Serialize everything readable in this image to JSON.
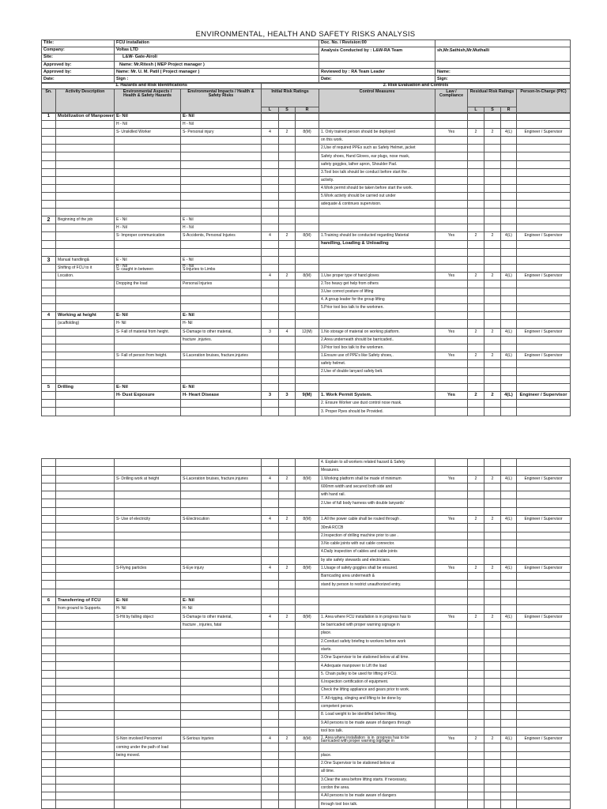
{
  "document": {
    "title": "ENVIRONMENTAL, HEALTH AND SAFETY RISKS ANALYSIS"
  },
  "info": {
    "title_label": "Title:",
    "title_value": "FCU installation",
    "company_label": "Company:",
    "company_value": "Voltas LTD",
    "site_label": "Site:",
    "site_value": "L&W- Gate-Airoli",
    "approved1_label": "Approved by:",
    "approved1_value": "Name: Mr.Ritesh ( MEP Project manager )",
    "approved2_label": "Approved by:",
    "approved2_value": "Name: Mr. U. M. Patil ( Project manager )",
    "date_label": "Date:",
    "date_value": "Sign :",
    "doc_no": "Doc. No. / Revision:00",
    "conducted_by": "Analysis Conducted by :  L&W-RA Team",
    "conducted_names": "sh,Mr.Sathish,Mr.Muthalli",
    "reviewed_by": "Reviewed by :  RA Team Leader",
    "reviewer_name": "Name:",
    "right_date": "Date:",
    "right_sign": "Sign:"
  },
  "sections": {
    "left": "1. Hazards and Risk Identifications",
    "right": "2. Risk Evaluation and Controls"
  },
  "columns": {
    "sn": "Sn.",
    "activity": "Activity Description",
    "aspects": "Environmental Aspects / Health & Safety Hazards",
    "impacts": "Environmental Impacts / Health & Safety Risks",
    "initial": "Initial Risk Ratings",
    "control": "Control Measures",
    "law": "Law / Compliance",
    "residual": "Residual Risk Ratings",
    "pic": "Person-In-Charge (PIC)",
    "l": "L",
    "s": "S",
    "r": "R"
  },
  "page1": {
    "rows": [
      {
        "cells": [
          "1",
          "Mobilization of Manpower",
          "E- Nil",
          "E- Nil"
        ],
        "bold": true
      },
      {
        "cells": [
          "",
          "",
          "H - Nil",
          "H - Nil"
        ]
      },
      {
        "cells": [
          "",
          "",
          "S- Unskilled Worker",
          "S- Personal injury",
          "4",
          "2",
          "8(M)",
          "1. Only trained person should be deployed",
          "Yes",
          "2",
          "2",
          "4(L)",
          "Engineer / Supervisor"
        ]
      },
      {
        "cells": [
          "",
          "",
          "",
          "",
          "",
          "",
          "",
          "on this work."
        ]
      },
      {
        "cells": [
          "",
          "",
          "",
          "",
          "",
          "",
          "",
          "2.Use of required PPEs such as Safety Helmet, jacket"
        ]
      },
      {
        "cells": [
          "",
          "",
          "",
          "",
          "",
          "",
          "",
          "Safety shoes, Hand Gloves, ear plugs, nose mask,"
        ]
      },
      {
        "cells": [
          "",
          "",
          "",
          "",
          "",
          "",
          "",
          " safety goggles, lather apron, Shoulder Pad."
        ]
      },
      {
        "cells": [
          "",
          "",
          "",
          "",
          "",
          "",
          "",
          "3.Tool box talk should be conduct before start the ."
        ]
      },
      {
        "cells": [
          "",
          "",
          "",
          "",
          "",
          "",
          "",
          "activity."
        ]
      },
      {
        "cells": [
          "",
          "",
          "",
          "",
          "",
          "",
          "",
          "4.Work permit should be taken before start the work."
        ]
      },
      {
        "cells": [
          "",
          "",
          "",
          "",
          "",
          "",
          "",
          "5.Work activity should be carried out under"
        ]
      },
      {
        "cells": [
          "",
          "",
          "",
          "",
          "",
          "",
          "",
          "adequate & continues supervision."
        ]
      },
      {
        "cells": []
      },
      {
        "cells": [
          "2",
          "Beginning of the job",
          "E - Nil",
          "E - Nil"
        ]
      },
      {
        "cells": [
          "",
          "",
          "H - Nil",
          "H - Nil"
        ]
      },
      {
        "cells": [
          "",
          "",
          "S- Improper communication",
          "S-Accidents, Personal Injuries",
          "4",
          "2",
          "8(M)",
          "    1.Training should be conducted regarding Material",
          "Yes",
          "2",
          "2",
          "4(L)",
          "Engineer / Supervisor"
        ]
      },
      {
        "cells": [
          "",
          "",
          "",
          "",
          "",
          "",
          "",
          "handling, Loading & Unloading"
        ],
        "bold": true
      },
      {
        "cells": []
      },
      {
        "cells": [
          "3",
          "Manual handling&",
          "E - Nil",
          "E - Nil"
        ]
      },
      {
        "cells": [
          "",
          "Shifting of FCU to it",
          "H - Nil\nS- caught in between",
          "H - Nil\nS-Injuries to Limbs"
        ]
      },
      {
        "cells": [
          "",
          "Location.",
          "",
          "",
          "4",
          "2",
          "8(M)",
          "1.Use proper type of hand gloves",
          "Yes",
          "2",
          "2",
          "4(L)",
          "Engineer / Supervisor"
        ]
      },
      {
        "cells": [
          "",
          "",
          "Dropping the load",
          "Personal Injuries",
          "",
          "",
          "",
          "2.Too heavy get help from others"
        ]
      },
      {
        "cells": [
          "",
          "",
          "",
          "",
          "",
          "",
          "",
          "3.Use correct posture of lifting"
        ]
      },
      {
        "cells": [
          "",
          "",
          "",
          "",
          "",
          "",
          "",
          "4. A group leader for the group lifting"
        ]
      },
      {
        "cells": [
          "",
          "",
          "",
          "",
          "",
          "",
          "",
          "5.Prior tool box talk to the workmen."
        ]
      },
      {
        "cells": [
          "4",
          "Working at height",
          "E- Nil",
          "E- Nil"
        ],
        "bold": true
      },
      {
        "cells": [
          "",
          "(scaffolding)",
          "H- Nil",
          "H- Nil"
        ]
      },
      {
        "cells": [
          "",
          "",
          "S- Fall of material from height.",
          "S-Damage  to other material,",
          "3",
          "4",
          "12(M)",
          "1.No storage of material on working platform.",
          "Yes",
          "2",
          "2",
          "4(L)",
          "Engineer / Supervisor"
        ]
      },
      {
        "cells": [
          "",
          "",
          "",
          "fracture ,injuries.",
          "",
          "",
          "",
          "2.Area underneath should be barricaded.."
        ]
      },
      {
        "cells": [
          "",
          "",
          "",
          "",
          "",
          "",
          "",
          "3.Prior tool box talk to the workmen."
        ]
      },
      {
        "cells": [
          "",
          "",
          "S- Fall of person from height.",
          "S-Laceration  bruises, fracture,injuries",
          "",
          "",
          "",
          "1.Ensure use of PPE's like Safety shoes,.",
          "Yes",
          "2",
          "2",
          "4(L)",
          "Engineer / Supervisor"
        ]
      },
      {
        "cells": [
          "",
          "",
          "",
          "",
          "",
          "",
          "",
          " safety helmet."
        ]
      },
      {
        "cells": [
          "",
          "",
          "",
          "",
          "",
          "",
          "",
          "2.Use of double lanyard safety belt."
        ]
      },
      {
        "cells": []
      },
      {
        "cells": [
          "5",
          "Drilling",
          "E- Nil",
          "E- Nil"
        ],
        "bold": true
      },
      {
        "cells": [
          "",
          "",
          "H- Dust Exposure",
          "H- Heart Disease",
          "3",
          "3",
          "9(M)",
          "1. Work Permit System.",
          "Yes",
          "2",
          "2",
          "4(L)",
          "Engineer / Supervisor"
        ],
        "bold": true
      },
      {
        "cells": [
          "",
          "",
          "",
          "",
          "",
          "",
          "",
          "2. Ensure Worker use dust control nose mask."
        ]
      },
      {
        "cells": [
          "",
          "",
          "",
          "",
          "",
          "",
          "",
          "3. Proper Ppes should be Provided."
        ]
      }
    ]
  },
  "page2": {
    "rows": [
      {
        "cells": [
          "",
          "",
          "",
          "",
          "",
          "",
          "",
          "4. Explain to all workers related hazard & Safety"
        ]
      },
      {
        "cells": [
          "",
          "",
          "",
          "",
          "",
          "",
          "",
          "Measures."
        ]
      },
      {
        "cells": [
          "",
          "",
          "S- Drilling work at height",
          "S-Laceration  bruises, fracture,injuries",
          "4",
          "2",
          "8(M)",
          "1.Working platform shall be made of minimum",
          "Yes",
          "2",
          "2",
          "4(L)",
          "Engineer / Supervisor"
        ]
      },
      {
        "cells": [
          "",
          "",
          "",
          "",
          "",
          "",
          "",
          " 600mm width and secured both side and"
        ]
      },
      {
        "cells": [
          "",
          "",
          "",
          "",
          "",
          "",
          "",
          "with hand rail."
        ]
      },
      {
        "cells": [
          "",
          "",
          "",
          "",
          "",
          "",
          "",
          "2.Use of full body harness with double lanyards'"
        ]
      },
      {
        "cells": []
      },
      {
        "cells": [
          "",
          "",
          "S- Use of electricity",
          "S-Electrocution",
          "4",
          "2",
          "8(M)",
          "1.All the power cable shall be routed through .",
          "Yes",
          "2",
          "2",
          "4(L)",
          "Engineer / Supervisor"
        ]
      },
      {
        "cells": [
          "",
          "",
          "",
          "",
          "",
          "",
          "",
          "30mA RCCB"
        ]
      },
      {
        "cells": [
          "",
          "",
          "",
          "",
          "",
          "",
          "",
          "2.Inspection of drilling machine prior to use ."
        ]
      },
      {
        "cells": [
          "",
          "",
          "",
          "",
          "",
          "",
          "",
          "3.No cable joints with out cable connector."
        ]
      },
      {
        "cells": [
          "",
          "",
          "",
          "",
          "",
          "",
          "",
          "4.Daily inspection of cables and cable joints"
        ]
      },
      {
        "cells": [
          "",
          "",
          "",
          "",
          "",
          "",
          "",
          "by site safety stewards and electricians."
        ]
      },
      {
        "cells": [
          "",
          "",
          "S-Flying particles",
          "S-Eye injury",
          "4",
          "2",
          "8(M)",
          "1.Usage of safety goggles shall be ensured.",
          "Yes",
          "2",
          "2",
          "4(L)",
          "Engineer / Supervisor"
        ]
      },
      {
        "cells": [
          "",
          "",
          "",
          "",
          "",
          "",
          "",
          "Barricading area underneath &"
        ]
      },
      {
        "cells": [
          "",
          "",
          "",
          "",
          "",
          "",
          "",
          "stand by person to restrict unauthorized entry."
        ]
      },
      {
        "cells": []
      },
      {
        "cells": [
          "6",
          "Transferring of FCU",
          "E- Nil",
          "E- Nil"
        ],
        "bold": true
      },
      {
        "cells": [
          "",
          "from  ground to Supports.",
          "H- Nil",
          "H- Nil"
        ]
      },
      {
        "cells": [
          "",
          "",
          "S-Hit by falling  object",
          "S-Damage to    other material,",
          "4",
          "2",
          "8(M)",
          "1. Area where FCU installation  is in  progress has to",
          "Yes",
          "2",
          "2",
          "4(L)",
          "Engineer / Supervisor"
        ]
      },
      {
        "cells": [
          "",
          "",
          "",
          "fracture , injuries, fatal",
          "",
          "",
          "",
          "be  barricaded with proper warning signage in"
        ]
      },
      {
        "cells": [
          "",
          "",
          "",
          "",
          "",
          "",
          "",
          "place."
        ]
      },
      {
        "cells": [
          "",
          "",
          "",
          "",
          "",
          "",
          "",
          "2.Conduct safety briefing   to workers  before work"
        ]
      },
      {
        "cells": [
          "",
          "",
          "",
          "",
          "",
          "",
          "",
          " starts."
        ]
      },
      {
        "cells": [
          "",
          "",
          "",
          "",
          "",
          "",
          "",
          "3.One Supervisor to be  stationed below at all  time."
        ]
      },
      {
        "cells": [
          "",
          "",
          "",
          "",
          "",
          "",
          "",
          "4.Adequate manpower to  Lift the load"
        ]
      },
      {
        "cells": [
          "",
          "",
          "",
          "",
          "",
          "",
          "",
          "5. Chain pulley to be used for lifting of FCU."
        ]
      },
      {
        "cells": [
          "",
          "",
          "",
          "",
          "",
          "",
          "",
          "6.Inspection certification of equipment."
        ]
      },
      {
        "cells": [
          "",
          "",
          "",
          "",
          "",
          "",
          "",
          "Check the lifting appliance and gears prior to work."
        ]
      },
      {
        "cells": [
          "",
          "",
          "",
          "",
          "",
          "",
          "",
          "7. All rigging, slinging and lifting to be done by"
        ]
      },
      {
        "cells": [
          "",
          "",
          "",
          "",
          "",
          "",
          "",
          "competent person."
        ]
      },
      {
        "cells": [
          "",
          "",
          "",
          "",
          "",
          "",
          "",
          "8. Load weight to be identified before lifting."
        ]
      },
      {
        "cells": [
          "",
          "",
          "",
          "",
          "",
          "",
          "",
          "9.All persons to be made aware of dangers through"
        ]
      },
      {
        "cells": [
          "",
          "",
          "",
          "",
          "",
          "",
          "",
          "tool box talk."
        ]
      },
      {
        "cells": [
          "",
          "",
          "S-Non involved Personnel",
          "S-Serious Injuries",
          "4",
          "2",
          "8(M)",
          "1. Area where installation  is in  progress has to be\nbarricaded with proper warning signage in",
          "Yes",
          "2",
          "2",
          "4(L)",
          "Engineer / Supervisor"
        ]
      },
      {
        "cells": [
          "",
          "",
          "coming under the path of load"
        ]
      },
      {
        "cells": [
          "",
          "",
          "  being moved.",
          "",
          "",
          "",
          "",
          "place."
        ]
      },
      {
        "cells": [
          "",
          "",
          "",
          "",
          "",
          "",
          "",
          "2.One Supervisor to be  stationed below at"
        ]
      },
      {
        "cells": [
          "",
          "",
          "",
          "",
          "",
          "",
          "",
          "all  time."
        ]
      },
      {
        "cells": [
          "",
          "",
          "",
          "",
          "",
          "",
          "",
          "3.Clear the area before lifting starts.  If necessary,"
        ]
      },
      {
        "cells": [
          "",
          "",
          "",
          "",
          "",
          "",
          "",
          "cordon the area."
        ]
      },
      {
        "cells": [
          "",
          "",
          "",
          "",
          "",
          "",
          "",
          "4.All persons to be made aware of dangers"
        ]
      },
      {
        "cells": [
          "",
          "",
          "",
          "",
          "",
          "",
          "",
          "through tool box talk."
        ]
      }
    ]
  }
}
